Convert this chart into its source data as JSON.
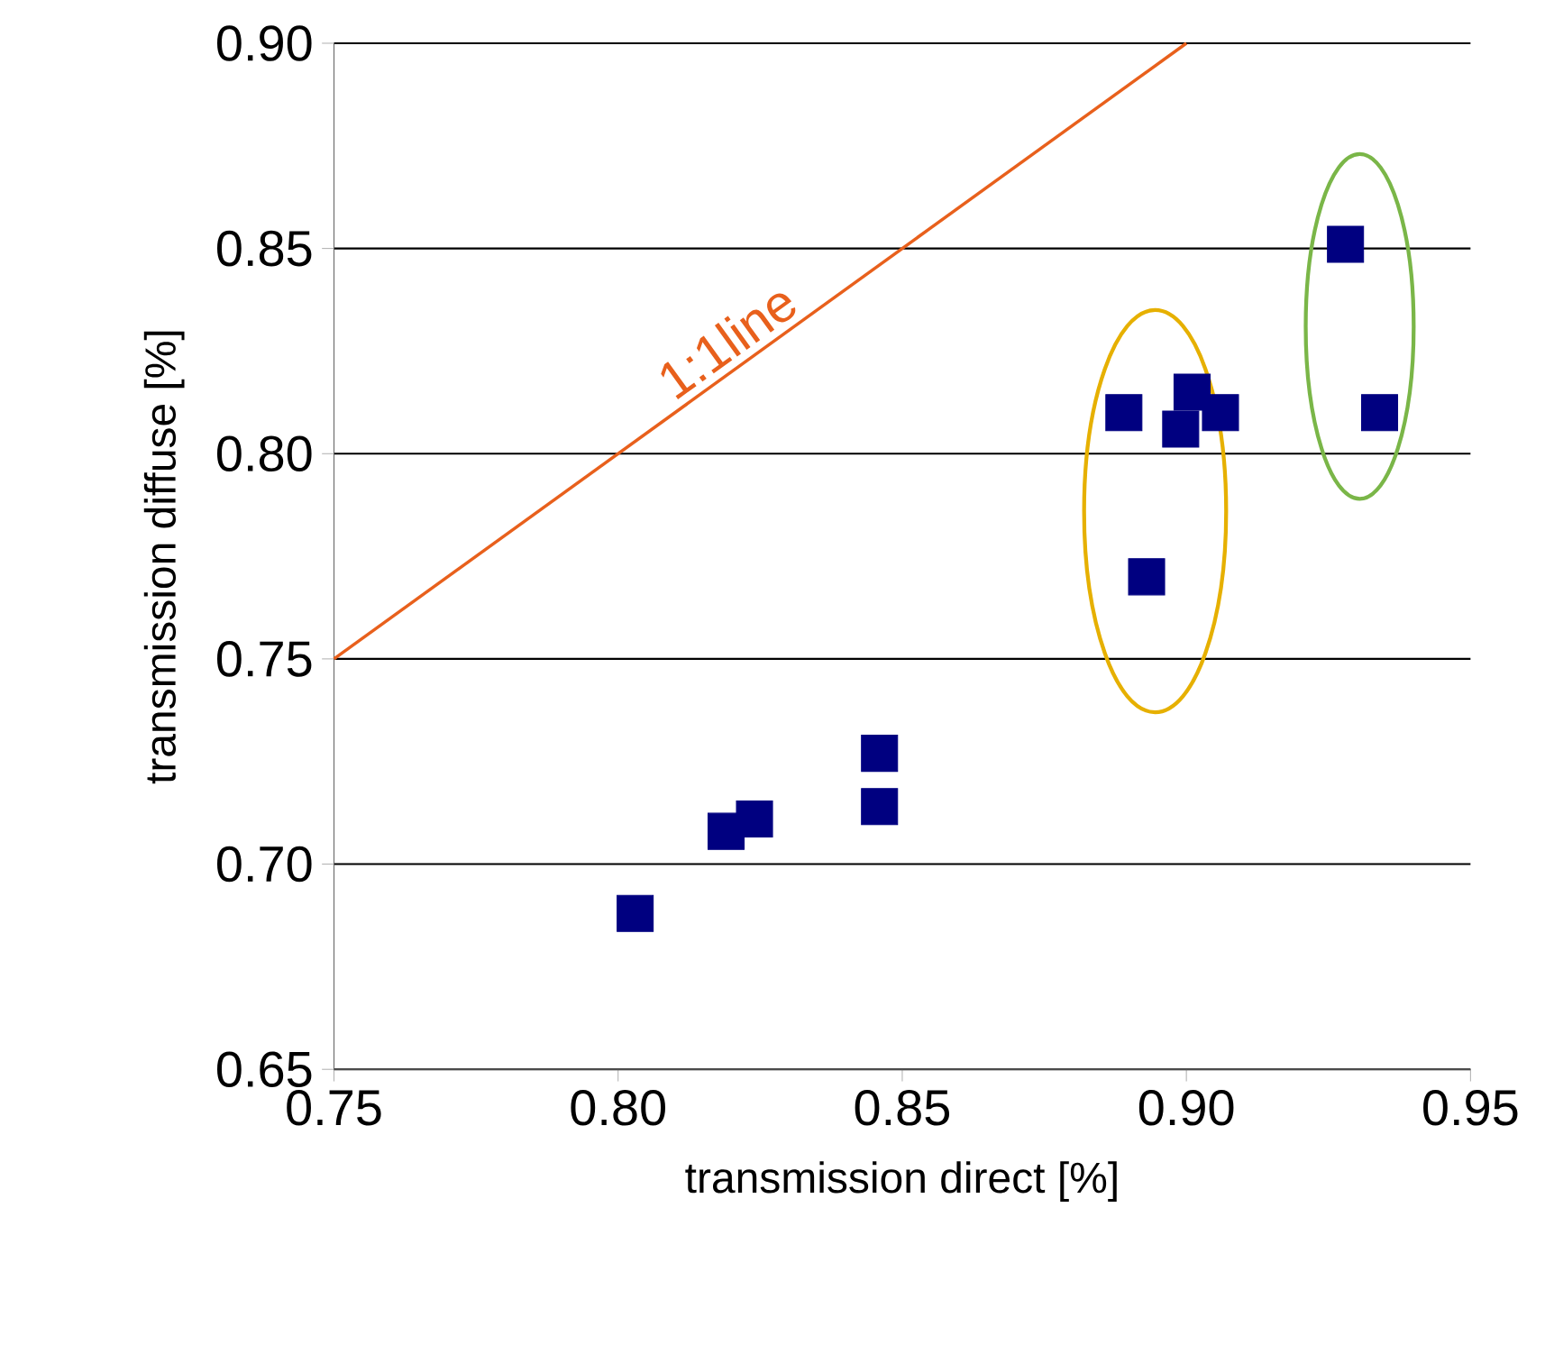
{
  "chart_data": {
    "type": "scatter",
    "xlabel": "transmission direct [%]",
    "ylabel": "transmission diffuse [%]",
    "xlim": [
      0.75,
      0.95
    ],
    "ylim": [
      0.65,
      0.9
    ],
    "xticks": [
      {
        "value": 0.75,
        "label": "0.75"
      },
      {
        "value": 0.8,
        "label": "0.80"
      },
      {
        "value": 0.85,
        "label": "0.85"
      },
      {
        "value": 0.9,
        "label": "0.90"
      },
      {
        "value": 0.95,
        "label": "0.95"
      }
    ],
    "yticks": [
      {
        "value": 0.65,
        "label": "0.65"
      },
      {
        "value": 0.7,
        "label": "0.70"
      },
      {
        "value": 0.75,
        "label": "0.75"
      },
      {
        "value": 0.8,
        "label": "0.80"
      },
      {
        "value": 0.85,
        "label": "0.85"
      },
      {
        "value": 0.9,
        "label": "0.90"
      }
    ],
    "grid": "y",
    "series": [
      {
        "marker": "square",
        "color": "#000080",
        "x": [
          0.803,
          0.819,
          0.824,
          0.846,
          0.846,
          0.889,
          0.893,
          0.899,
          0.901,
          0.906,
          0.928,
          0.934
        ],
        "values": [
          0.688,
          0.708,
          0.711,
          0.714,
          0.727,
          0.81,
          0.77,
          0.806,
          0.815,
          0.81,
          0.851,
          0.81
        ]
      },
      {
        "type": "line",
        "color": "#e8601c",
        "x": [
          0.75,
          0.9
        ],
        "values": [
          0.75,
          0.9
        ]
      }
    ],
    "annotations": [
      "1:1line"
    ]
  }
}
